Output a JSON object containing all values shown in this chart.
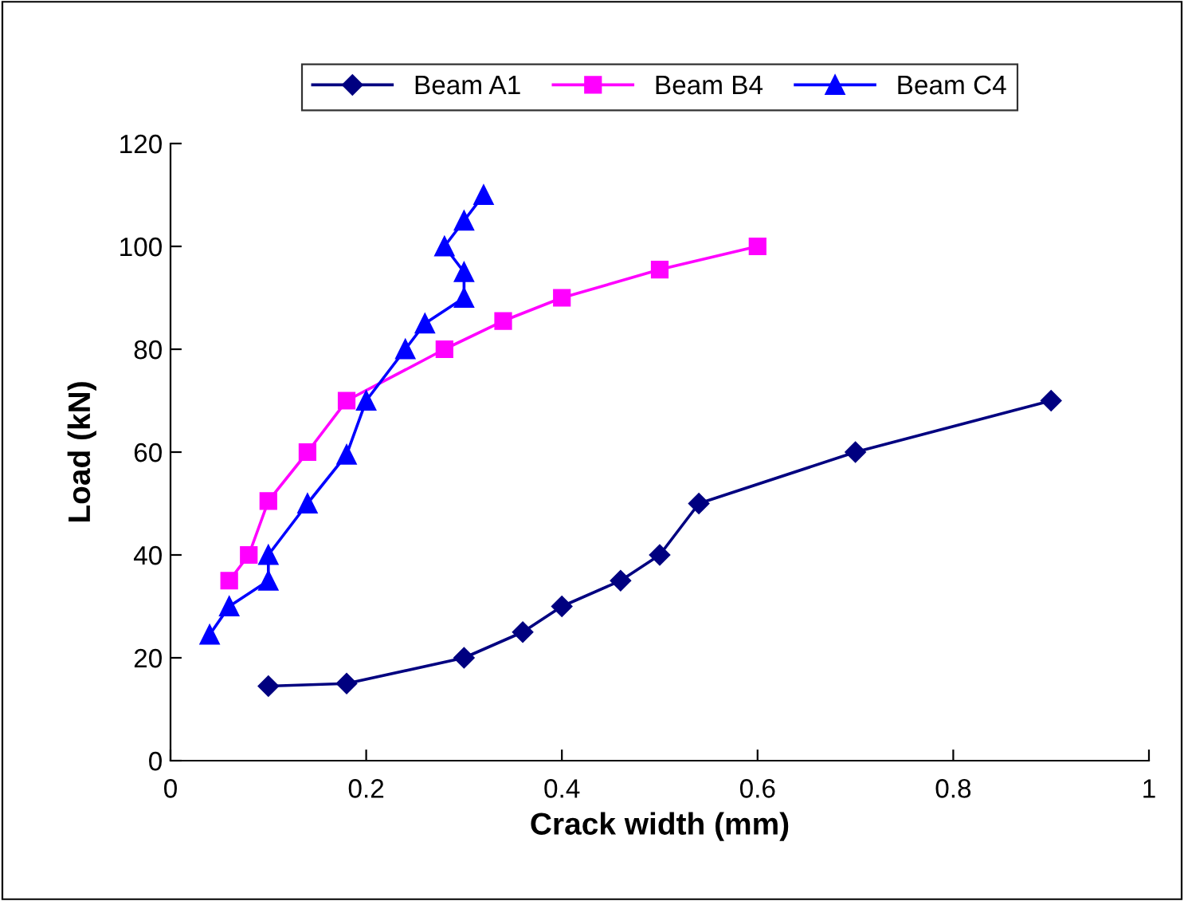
{
  "chart_data": {
    "type": "line",
    "xlabel": "Crack width (mm)",
    "ylabel": "Load (kN)",
    "xlim": [
      0,
      1
    ],
    "xticks": [
      0,
      0.2,
      0.4,
      0.6,
      0.8,
      1
    ],
    "ylim": [
      0,
      120
    ],
    "yticks": [
      0,
      20,
      40,
      60,
      80,
      100,
      120
    ],
    "grid": false,
    "legend": "top",
    "line_style": "solid",
    "series": [
      {
        "name": "Beam A1",
        "color": "#000080",
        "marker": "diamond",
        "x": [
          0.1,
          0.18,
          0.3,
          0.36,
          0.4,
          0.46,
          0.5,
          0.54,
          0.7,
          0.9
        ],
        "values": [
          14.5,
          15,
          20,
          25,
          30,
          35,
          40,
          50,
          60,
          70
        ]
      },
      {
        "name": "Beam B4",
        "color": "#ff00ff",
        "marker": "square",
        "x": [
          0.06,
          0.08,
          0.1,
          0.14,
          0.18,
          0.28,
          0.34,
          0.4,
          0.5,
          0.6
        ],
        "values": [
          35,
          40,
          50.5,
          60,
          70,
          80,
          85.5,
          90,
          95.5,
          100
        ]
      },
      {
        "name": "Beam C4",
        "color": "#0000ff",
        "marker": "triangle",
        "x": [
          0.04,
          0.06,
          0.1,
          0.1,
          0.14,
          0.18,
          0.2,
          0.24,
          0.26,
          0.3,
          0.3,
          0.28,
          0.3,
          0.32
        ],
        "values": [
          24.5,
          30,
          35,
          40,
          50,
          59.5,
          70,
          80,
          85,
          90,
          95,
          100,
          105,
          110
        ]
      }
    ]
  }
}
